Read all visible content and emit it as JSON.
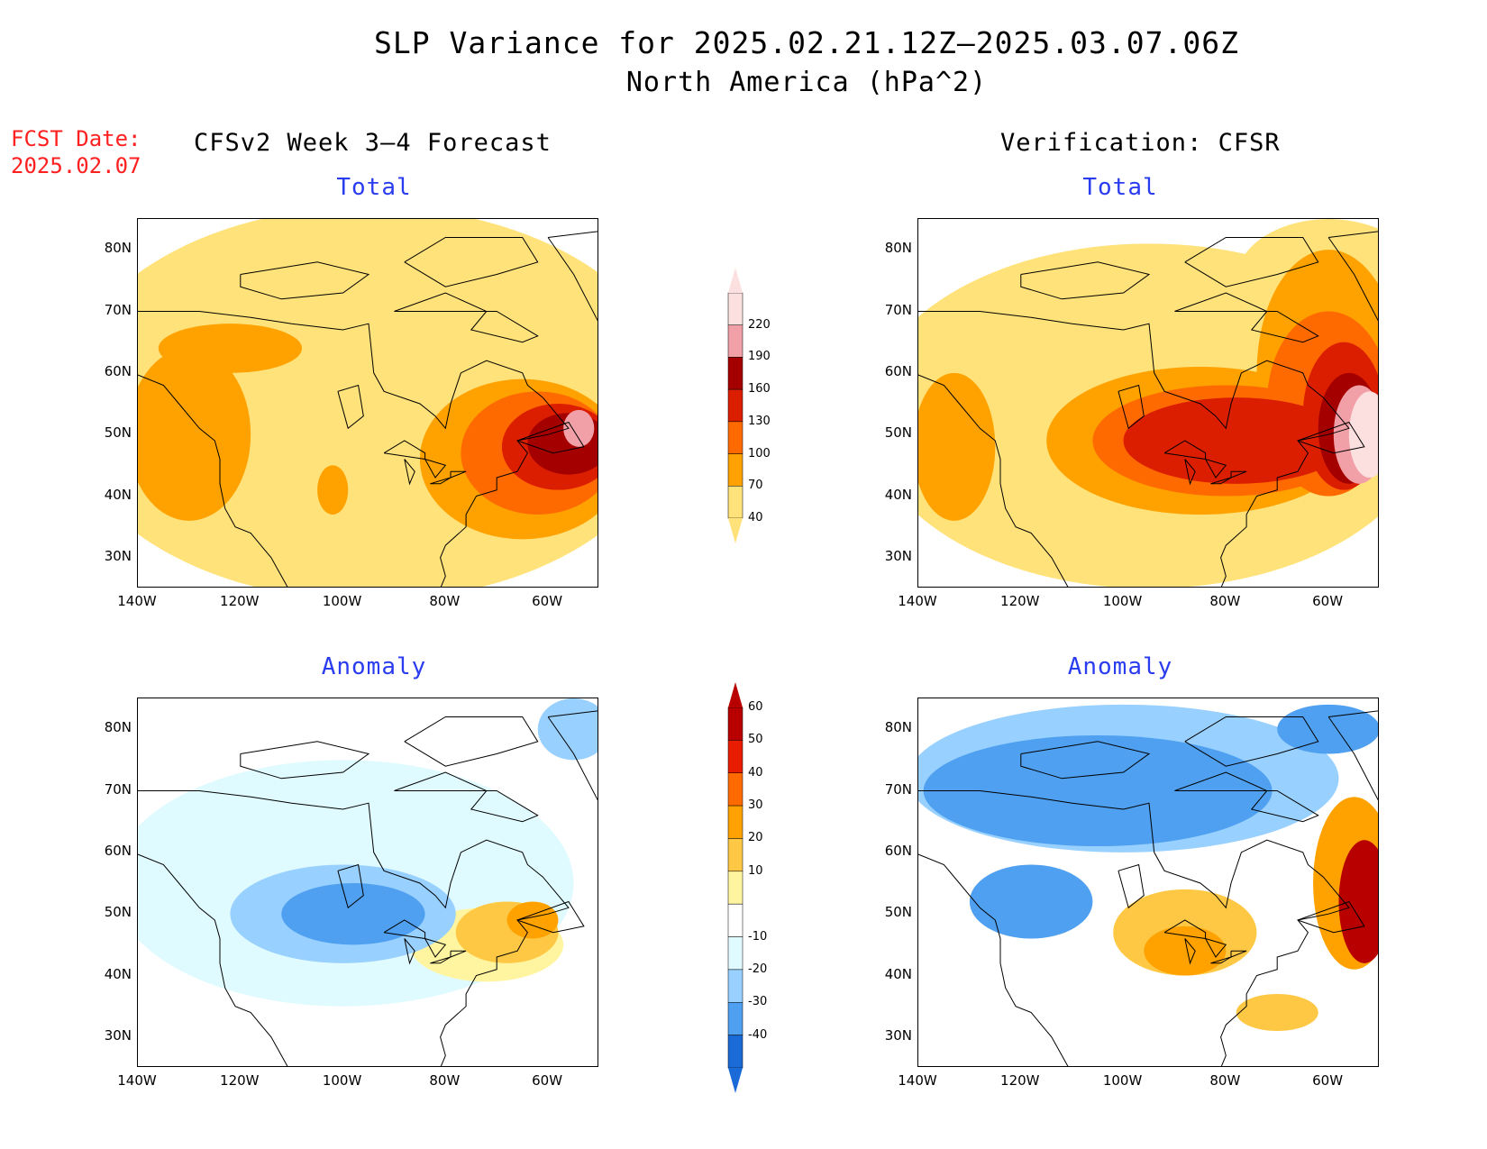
{
  "title_line1": "SLP Variance for 2025.02.21.12Z–2025.03.07.06Z",
  "title_line2": "North America (hPa^2)",
  "fcst_date_label": "FCST Date:",
  "fcst_date_value": "2025.02.07",
  "left_column_header": "CFSv2 Week 3–4 Forecast",
  "right_column_header": "Verification: CFSR",
  "panels": [
    {
      "id": "forecast-total",
      "title": "Total"
    },
    {
      "id": "verification-total",
      "title": "Total"
    },
    {
      "id": "forecast-anomaly",
      "title": "Anomaly"
    },
    {
      "id": "verification-anomaly",
      "title": "Anomaly"
    }
  ],
  "lat_ticks": [
    "80N",
    "70N",
    "60N",
    "50N",
    "40N",
    "30N"
  ],
  "lon_ticks": [
    "140W",
    "120W",
    "100W",
    "80W",
    "60W"
  ],
  "colorbar_total": {
    "levels": [
      "220",
      "190",
      "160",
      "130",
      "100",
      "70",
      "40"
    ],
    "colors": [
      "#fce0e0",
      "#f2a0a8",
      "#a50000",
      "#dc1e00",
      "#ff6a00",
      "#ffa200",
      "#ffe27a"
    ]
  },
  "colorbar_anomaly": {
    "levels": [
      "60",
      "50",
      "40",
      "30",
      "20",
      "10",
      "-10",
      "-20",
      "-30",
      "-40"
    ],
    "colors": [
      "#b80000",
      "#e81c00",
      "#ff6a00",
      "#ffa200",
      "#ffc844",
      "#fff5a0",
      "#ffffff",
      "#e0fbff",
      "#98d0ff",
      "#4fa0f0",
      "#1a6ad8"
    ]
  },
  "chart_data": {
    "type": "heatmap",
    "map_extent": {
      "lon": [
        -140,
        -50
      ],
      "lat": [
        25,
        85
      ]
    },
    "units": "hPa^2",
    "fields": [
      {
        "panel": "forecast-total",
        "blobs": [
          {
            "lon": -95,
            "lat": 55,
            "rx": 60,
            "ry": 32,
            "level": 40
          },
          {
            "lon": -130,
            "lat": 50,
            "rx": 12,
            "ry": 14,
            "level": 70
          },
          {
            "lon": -122,
            "lat": 64,
            "rx": 14,
            "ry": 4,
            "level": 70
          },
          {
            "lon": -102,
            "lat": 41,
            "rx": 3,
            "ry": 4,
            "level": 70
          },
          {
            "lon": -65,
            "lat": 46,
            "rx": 20,
            "ry": 13,
            "level": 70
          },
          {
            "lon": -62,
            "lat": 47,
            "rx": 15,
            "ry": 10,
            "level": 100
          },
          {
            "lon": -58,
            "lat": 48,
            "rx": 11,
            "ry": 7,
            "level": 130
          },
          {
            "lon": -56,
            "lat": 48.5,
            "rx": 8,
            "ry": 5,
            "level": 160
          },
          {
            "lon": -54,
            "lat": 51,
            "rx": 3,
            "ry": 3,
            "level": 190
          }
        ]
      },
      {
        "panel": "verification-total",
        "blobs": [
          {
            "lon": -95,
            "lat": 53,
            "rx": 55,
            "ry": 28,
            "level": 40
          },
          {
            "lon": -60,
            "lat": 75,
            "rx": 18,
            "ry": 10,
            "level": 40
          },
          {
            "lon": -133,
            "lat": 48,
            "rx": 8,
            "ry": 12,
            "level": 70
          },
          {
            "lon": -85,
            "lat": 49,
            "rx": 30,
            "ry": 12,
            "level": 70
          },
          {
            "lon": -60,
            "lat": 60,
            "rx": 14,
            "ry": 20,
            "level": 70
          },
          {
            "lon": -80,
            "lat": 49,
            "rx": 26,
            "ry": 9,
            "level": 100
          },
          {
            "lon": -60,
            "lat": 55,
            "rx": 12,
            "ry": 15,
            "level": 100
          },
          {
            "lon": -78,
            "lat": 49,
            "rx": 22,
            "ry": 7,
            "level": 130
          },
          {
            "lon": -57,
            "lat": 53,
            "rx": 8,
            "ry": 12,
            "level": 130
          },
          {
            "lon": -56,
            "lat": 51,
            "rx": 6,
            "ry": 9,
            "level": 160
          },
          {
            "lon": -54,
            "lat": 50,
            "rx": 5,
            "ry": 8,
            "level": 190
          },
          {
            "lon": -52,
            "lat": 50,
            "rx": 4,
            "ry": 7,
            "level": 220
          }
        ]
      },
      {
        "panel": "forecast-anomaly",
        "blobs": [
          {
            "lon": -100,
            "lat": 55,
            "rx": 45,
            "ry": 20,
            "level": -10
          },
          {
            "lon": -100,
            "lat": 50,
            "rx": 22,
            "ry": 8,
            "level": -20
          },
          {
            "lon": -98,
            "lat": 50,
            "rx": 14,
            "ry": 5,
            "level": -30
          },
          {
            "lon": -55,
            "lat": 80,
            "rx": 7,
            "ry": 5,
            "level": -20
          },
          {
            "lon": -72,
            "lat": 45,
            "rx": 15,
            "ry": 6,
            "level": 10
          },
          {
            "lon": -68,
            "lat": 47,
            "rx": 10,
            "ry": 5,
            "level": 20
          },
          {
            "lon": -63,
            "lat": 49,
            "rx": 5,
            "ry": 3,
            "level": 30
          }
        ]
      },
      {
        "panel": "verification-anomaly",
        "blobs": [
          {
            "lon": -100,
            "lat": 72,
            "rx": 42,
            "ry": 12,
            "level": -20
          },
          {
            "lon": -105,
            "lat": 70,
            "rx": 34,
            "ry": 9,
            "level": -30
          },
          {
            "lon": -118,
            "lat": 52,
            "rx": 12,
            "ry": 6,
            "level": -30
          },
          {
            "lon": -60,
            "lat": 80,
            "rx": 10,
            "ry": 4,
            "level": -30
          },
          {
            "lon": -88,
            "lat": 47,
            "rx": 14,
            "ry": 7,
            "level": 20
          },
          {
            "lon": -88,
            "lat": 44,
            "rx": 8,
            "ry": 4,
            "level": 30
          },
          {
            "lon": -55,
            "lat": 55,
            "rx": 8,
            "ry": 14,
            "level": 30
          },
          {
            "lon": -53,
            "lat": 52,
            "rx": 5,
            "ry": 10,
            "level": 60
          },
          {
            "lon": -70,
            "lat": 34,
            "rx": 8,
            "ry": 3,
            "level": 20
          }
        ]
      }
    ]
  }
}
